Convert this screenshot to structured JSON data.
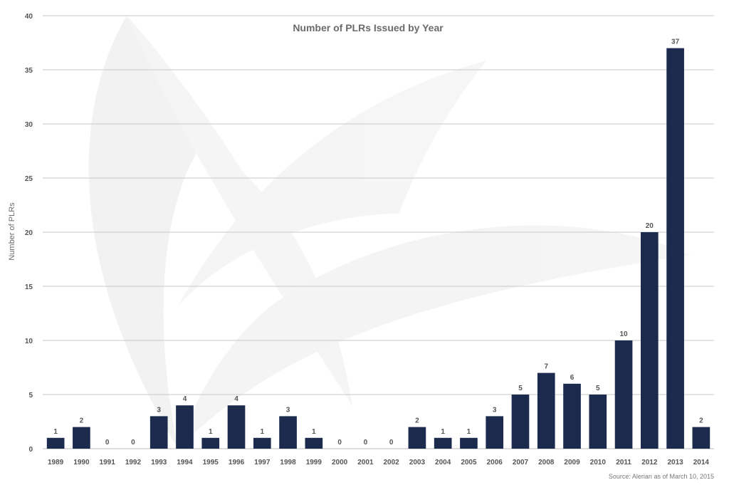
{
  "chart_data": {
    "type": "bar",
    "title": "Number of PLRs Issued by Year",
    "xlabel": "",
    "ylabel": "Number of PLRs",
    "ylim": [
      0,
      40
    ],
    "yticks": [
      0,
      5,
      10,
      15,
      20,
      25,
      30,
      35,
      40
    ],
    "grid": true,
    "categories": [
      "1989",
      "1990",
      "1991",
      "1992",
      "1993",
      "1994",
      "1995",
      "1996",
      "1997",
      "1998",
      "1999",
      "2000",
      "2001",
      "2002",
      "2003",
      "2004",
      "2005",
      "2006",
      "2007",
      "2008",
      "2009",
      "2010",
      "2011",
      "2012",
      "2013",
      "2014"
    ],
    "values": [
      1,
      2,
      0,
      0,
      3,
      4,
      1,
      4,
      1,
      3,
      1,
      0,
      0,
      0,
      2,
      1,
      1,
      3,
      5,
      7,
      6,
      5,
      10,
      20,
      37,
      2
    ],
    "bar_color": "#1c2a4d",
    "source": "Source: Alerian as of March 10, 2015"
  }
}
